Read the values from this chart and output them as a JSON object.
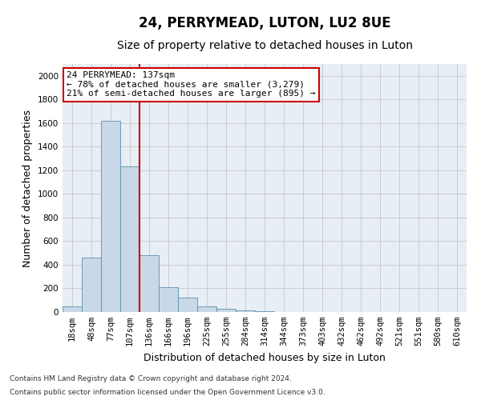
{
  "title": "24, PERRYMEAD, LUTON, LU2 8UE",
  "subtitle": "Size of property relative to detached houses in Luton",
  "xlabel": "Distribution of detached houses by size in Luton",
  "ylabel": "Number of detached properties",
  "footnote1": "Contains HM Land Registry data © Crown copyright and database right 2024.",
  "footnote2": "Contains public sector information licensed under the Open Government Licence v3.0.",
  "bin_labels": [
    "18sqm",
    "48sqm",
    "77sqm",
    "107sqm",
    "136sqm",
    "166sqm",
    "196sqm",
    "225sqm",
    "255sqm",
    "284sqm",
    "314sqm",
    "344sqm",
    "373sqm",
    "403sqm",
    "432sqm",
    "462sqm",
    "492sqm",
    "521sqm",
    "551sqm",
    "580sqm",
    "610sqm"
  ],
  "bar_heights": [
    50,
    460,
    1620,
    1230,
    480,
    210,
    120,
    50,
    30,
    15,
    5,
    0,
    0,
    0,
    0,
    0,
    0,
    0,
    0,
    0,
    0
  ],
  "bar_color": "#c8d8e8",
  "bar_edge_color": "#5a8faa",
  "vline_x_index": 3.5,
  "annotation_text": "24 PERRYMEAD: 137sqm\n← 78% of detached houses are smaller (3,279)\n21% of semi-detached houses are larger (895) →",
  "annotation_box_color": "#ffffff",
  "annotation_box_edge": "#cc0000",
  "vline_color": "#cc0000",
  "ylim": [
    0,
    2100
  ],
  "yticks": [
    0,
    200,
    400,
    600,
    800,
    1000,
    1200,
    1400,
    1600,
    1800,
    2000
  ],
  "grid_color": "#cccccc",
  "background_color": "#e8eef5",
  "title_fontsize": 12,
  "subtitle_fontsize": 10,
  "axis_label_fontsize": 9,
  "tick_fontsize": 7.5,
  "annotation_fontsize": 8
}
